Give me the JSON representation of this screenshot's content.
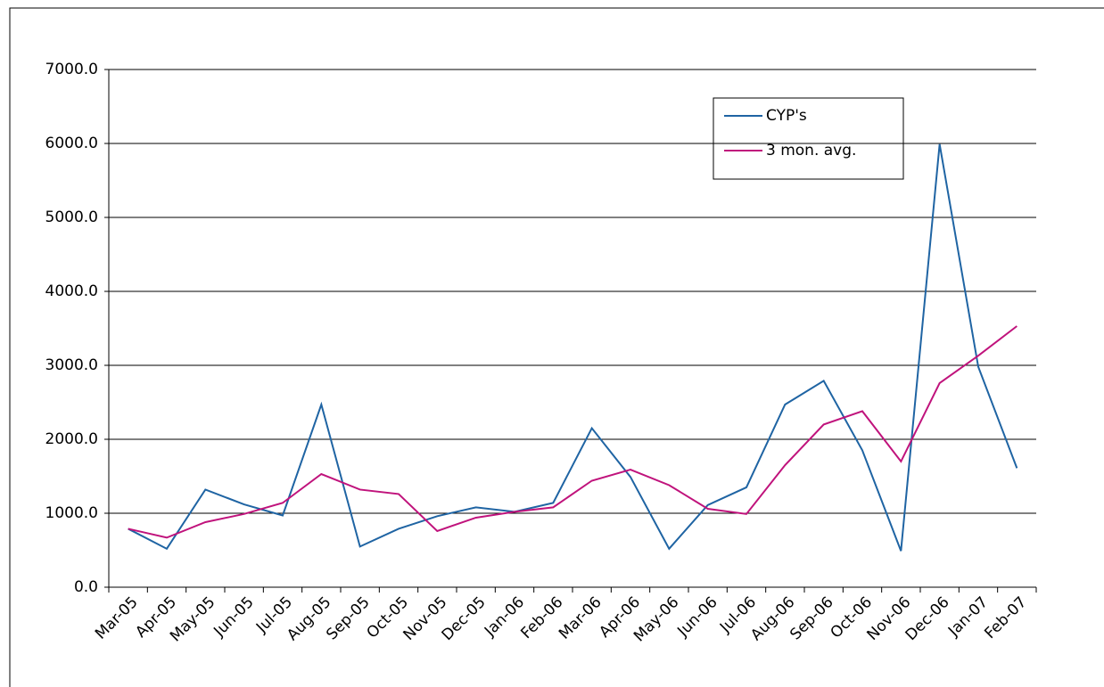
{
  "chart_data": {
    "type": "line",
    "categories": [
      "Mar-05",
      "Apr-05",
      "May-05",
      "Jun-05",
      "Jul-05",
      "Aug-05",
      "Sep-05",
      "Oct-05",
      "Nov-05",
      "Dec-05",
      "Jan-06",
      "Feb-06",
      "Mar-06",
      "Apr-06",
      "May-06",
      "Jun-06",
      "Jul-06",
      "Aug-06",
      "Sep-06",
      "Oct-06",
      "Nov-06",
      "Dec-06",
      "Jan-07",
      "Feb-07"
    ],
    "series": [
      {
        "name": "CYP's",
        "color": "#1f64a3",
        "values": [
          790,
          520,
          1320,
          1120,
          970,
          2470,
          550,
          790,
          960,
          1080,
          1020,
          1140,
          2150,
          1490,
          520,
          1110,
          1350,
          2470,
          2790,
          1850,
          490,
          5990,
          2980,
          1610
        ]
      },
      {
        "name": "3 mon. avg.",
        "color": "#c0137c",
        "values": [
          790,
          670,
          880,
          990,
          1140,
          1530,
          1320,
          1260,
          760,
          940,
          1020,
          1080,
          1440,
          1590,
          1380,
          1060,
          990,
          1650,
          2200,
          2380,
          1700,
          2760,
          3130,
          3530
        ]
      }
    ],
    "ylim": [
      0,
      7000
    ],
    "yticks": [
      {
        "value": 0,
        "label": "0.0"
      },
      {
        "value": 1000,
        "label": "1000.0"
      },
      {
        "value": 2000,
        "label": "2000.0"
      },
      {
        "value": 3000,
        "label": "3000.0"
      },
      {
        "value": 4000,
        "label": "4000.0"
      },
      {
        "value": 5000,
        "label": "5000.0"
      },
      {
        "value": 6000,
        "label": "6000.0"
      },
      {
        "value": 7000,
        "label": "7000.0"
      }
    ],
    "grid": true
  }
}
